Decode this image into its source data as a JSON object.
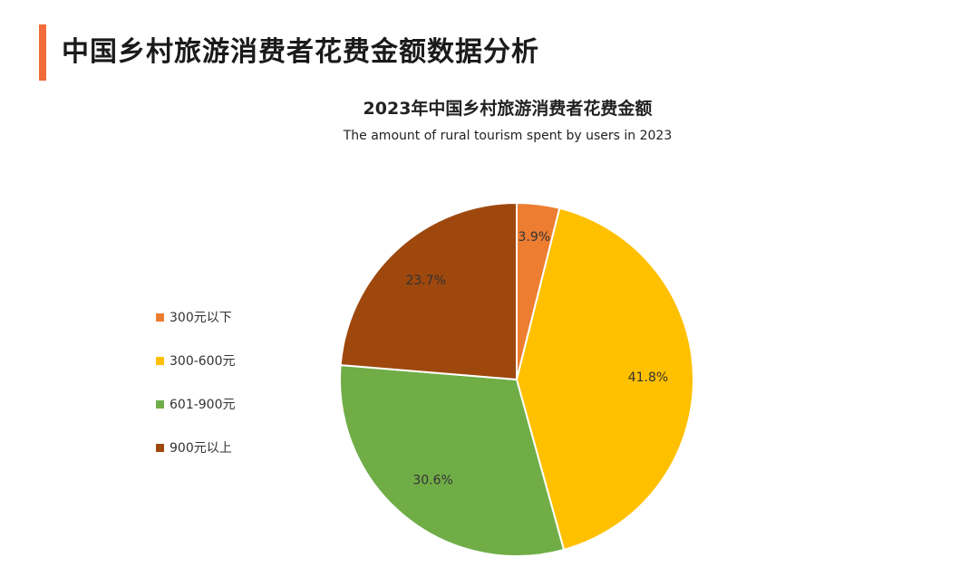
{
  "page": {
    "title": "中国乡村旅游消费者花费金额数据分析"
  },
  "chart_data": {
    "type": "pie",
    "title": "2023年中国乡村旅游消费者花费金额",
    "subtitle": "The amount of rural tourism spent by users in 2023",
    "legend_position": "left",
    "categories": [
      "300元以下",
      "300-600元",
      "601-900元",
      "900元以上"
    ],
    "values": [
      3.9,
      41.8,
      30.6,
      23.7
    ],
    "labels": [
      "3.9%",
      "41.8%",
      "30.6%",
      "23.7%"
    ],
    "colors": [
      "#ed7d31",
      "#ffc000",
      "#70ad47",
      "#9e480e"
    ],
    "label_colors": [
      "#333333",
      "#333333",
      "#333333",
      "#ffffff"
    ]
  }
}
